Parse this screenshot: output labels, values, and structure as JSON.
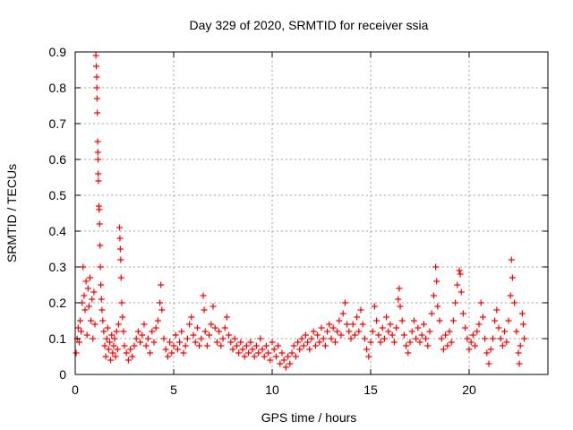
{
  "chart_data": {
    "type": "scatter",
    "title": "Day 329 of 2020, SRMTID for receiver ssia",
    "xlabel": "GPS time / hours",
    "ylabel": "SRMTID / TECUs",
    "xlim": [
      0,
      24
    ],
    "ylim": [
      0,
      0.9
    ],
    "xticks": [
      0,
      5,
      10,
      15,
      20
    ],
    "xtick_labels": [
      "0",
      "5",
      "10",
      "15",
      "20"
    ],
    "yticks": [
      0,
      0.1,
      0.2,
      0.3,
      0.4,
      0.5,
      0.6,
      0.7,
      0.8,
      0.9
    ],
    "ytick_labels": [
      "0",
      "0.1",
      "0.2",
      "0.3",
      "0.4",
      "0.5",
      "0.6",
      "0.7",
      "0.8",
      "0.9"
    ],
    "grid": true,
    "marker": "+",
    "color": "#ff0000",
    "series": [
      {
        "name": "SRMTID",
        "points": [
          [
            0.05,
            0.06
          ],
          [
            0.1,
            0.1
          ],
          [
            0.15,
            0.13
          ],
          [
            0.2,
            0.09
          ],
          [
            0.25,
            0.15
          ],
          [
            0.3,
            0.12
          ],
          [
            0.35,
            0.2
          ],
          [
            0.4,
            0.3
          ],
          [
            0.45,
            0.22
          ],
          [
            0.5,
            0.18
          ],
          [
            0.55,
            0.26
          ],
          [
            0.6,
            0.11
          ],
          [
            0.65,
            0.24
          ],
          [
            0.7,
            0.19
          ],
          [
            0.75,
            0.27
          ],
          [
            0.8,
            0.15
          ],
          [
            0.85,
            0.21
          ],
          [
            0.9,
            0.1
          ],
          [
            0.95,
            0.23
          ],
          [
            1.0,
            0.14
          ],
          [
            1.05,
            0.89
          ],
          [
            1.07,
            0.86
          ],
          [
            1.09,
            0.83
          ],
          [
            1.1,
            0.8
          ],
          [
            1.11,
            0.77
          ],
          [
            1.12,
            0.73
          ],
          [
            1.14,
            0.65
          ],
          [
            1.15,
            0.62
          ],
          [
            1.16,
            0.6
          ],
          [
            1.17,
            0.56
          ],
          [
            1.18,
            0.54
          ],
          [
            1.2,
            0.47
          ],
          [
            1.22,
            0.46
          ],
          [
            1.24,
            0.42
          ],
          [
            1.26,
            0.36
          ],
          [
            1.28,
            0.3
          ],
          [
            1.3,
            0.25
          ],
          [
            1.33,
            0.21
          ],
          [
            1.36,
            0.18
          ],
          [
            1.4,
            0.15
          ],
          [
            1.45,
            0.12
          ],
          [
            1.5,
            0.08
          ],
          [
            1.55,
            0.05
          ],
          [
            1.6,
            0.1
          ],
          [
            1.65,
            0.13
          ],
          [
            1.7,
            0.07
          ],
          [
            1.75,
            0.09
          ],
          [
            1.8,
            0.04
          ],
          [
            1.85,
            0.11
          ],
          [
            1.9,
            0.06
          ],
          [
            1.95,
            0.08
          ],
          [
            2.0,
            0.1
          ],
          [
            2.05,
            0.05
          ],
          [
            2.1,
            0.12
          ],
          [
            2.15,
            0.07
          ],
          [
            2.2,
            0.14
          ],
          [
            2.25,
            0.41
          ],
          [
            2.27,
            0.38
          ],
          [
            2.29,
            0.35
          ],
          [
            2.31,
            0.32
          ],
          [
            2.33,
            0.27
          ],
          [
            2.36,
            0.2
          ],
          [
            2.4,
            0.16
          ],
          [
            2.45,
            0.12
          ],
          [
            2.5,
            0.08
          ],
          [
            2.6,
            0.06
          ],
          [
            2.7,
            0.04
          ],
          [
            2.8,
            0.07
          ],
          [
            2.9,
            0.05
          ],
          [
            3.0,
            0.08
          ],
          [
            3.1,
            0.1
          ],
          [
            3.2,
            0.12
          ],
          [
            3.3,
            0.09
          ],
          [
            3.4,
            0.11
          ],
          [
            3.5,
            0.14
          ],
          [
            3.6,
            0.08
          ],
          [
            3.7,
            0.1
          ],
          [
            3.8,
            0.06
          ],
          [
            3.9,
            0.12
          ],
          [
            4.0,
            0.09
          ],
          [
            4.1,
            0.13
          ],
          [
            4.2,
            0.15
          ],
          [
            4.3,
            0.2
          ],
          [
            4.35,
            0.25
          ],
          [
            4.4,
            0.18
          ],
          [
            4.5,
            0.1
          ],
          [
            4.6,
            0.07
          ],
          [
            4.7,
            0.05
          ],
          [
            4.8,
            0.09
          ],
          [
            4.9,
            0.06
          ],
          [
            5.0,
            0.08
          ],
          [
            5.1,
            0.11
          ],
          [
            5.2,
            0.07
          ],
          [
            5.3,
            0.09
          ],
          [
            5.4,
            0.12
          ],
          [
            5.5,
            0.06
          ],
          [
            5.6,
            0.08
          ],
          [
            5.7,
            0.1
          ],
          [
            5.8,
            0.14
          ],
          [
            5.9,
            0.16
          ],
          [
            6.0,
            0.11
          ],
          [
            6.1,
            0.09
          ],
          [
            6.2,
            0.13
          ],
          [
            6.3,
            0.08
          ],
          [
            6.4,
            0.1
          ],
          [
            6.5,
            0.22
          ],
          [
            6.55,
            0.18
          ],
          [
            6.6,
            0.12
          ],
          [
            6.7,
            0.08
          ],
          [
            6.8,
            0.11
          ],
          [
            6.9,
            0.14
          ],
          [
            7.0,
            0.19
          ],
          [
            7.1,
            0.13
          ],
          [
            7.2,
            0.09
          ],
          [
            7.3,
            0.12
          ],
          [
            7.4,
            0.08
          ],
          [
            7.5,
            0.1
          ],
          [
            7.6,
            0.13
          ],
          [
            7.7,
            0.16
          ],
          [
            7.8,
            0.11
          ],
          [
            7.9,
            0.09
          ],
          [
            8.0,
            0.07
          ],
          [
            8.1,
            0.1
          ],
          [
            8.2,
            0.08
          ],
          [
            8.3,
            0.06
          ],
          [
            8.4,
            0.09
          ],
          [
            8.5,
            0.07
          ],
          [
            8.6,
            0.05
          ],
          [
            8.7,
            0.08
          ],
          [
            8.8,
            0.06
          ],
          [
            8.9,
            0.09
          ],
          [
            9.0,
            0.07
          ],
          [
            9.1,
            0.05
          ],
          [
            9.2,
            0.08
          ],
          [
            9.3,
            0.06
          ],
          [
            9.4,
            0.1
          ],
          [
            9.5,
            0.07
          ],
          [
            9.6,
            0.05
          ],
          [
            9.7,
            0.08
          ],
          [
            9.8,
            0.06
          ],
          [
            9.9,
            0.04
          ],
          [
            10.0,
            0.09
          ],
          [
            10.1,
            0.07
          ],
          [
            10.2,
            0.05
          ],
          [
            10.3,
            0.08
          ],
          [
            10.4,
            0.03
          ],
          [
            10.5,
            0.06
          ],
          [
            10.6,
            0.04
          ],
          [
            10.7,
            0.02
          ],
          [
            10.8,
            0.05
          ],
          [
            10.9,
            0.03
          ],
          [
            11.0,
            0.06
          ],
          [
            11.1,
            0.08
          ],
          [
            11.2,
            0.05
          ],
          [
            11.3,
            0.09
          ],
          [
            11.4,
            0.07
          ],
          [
            11.5,
            0.1
          ],
          [
            11.6,
            0.08
          ],
          [
            11.7,
            0.11
          ],
          [
            11.8,
            0.09
          ],
          [
            11.9,
            0.07
          ],
          [
            12.0,
            0.1
          ],
          [
            12.1,
            0.12
          ],
          [
            12.2,
            0.08
          ],
          [
            12.3,
            0.11
          ],
          [
            12.4,
            0.09
          ],
          [
            12.5,
            0.13
          ],
          [
            12.6,
            0.1
          ],
          [
            12.7,
            0.08
          ],
          [
            12.8,
            0.12
          ],
          [
            12.9,
            0.14
          ],
          [
            13.0,
            0.1
          ],
          [
            13.1,
            0.13
          ],
          [
            13.2,
            0.09
          ],
          [
            13.3,
            0.12
          ],
          [
            13.4,
            0.15
          ],
          [
            13.5,
            0.11
          ],
          [
            13.6,
            0.17
          ],
          [
            13.7,
            0.2
          ],
          [
            13.8,
            0.14
          ],
          [
            13.9,
            0.12
          ],
          [
            14.0,
            0.1
          ],
          [
            14.1,
            0.14
          ],
          [
            14.2,
            0.11
          ],
          [
            14.3,
            0.16
          ],
          [
            14.4,
            0.12
          ],
          [
            14.5,
            0.18
          ],
          [
            14.6,
            0.14
          ],
          [
            14.7,
            0.1
          ],
          [
            14.8,
            0.07
          ],
          [
            14.9,
            0.05
          ],
          [
            15.0,
            0.09
          ],
          [
            15.1,
            0.12
          ],
          [
            15.2,
            0.19
          ],
          [
            15.3,
            0.15
          ],
          [
            15.4,
            0.11
          ],
          [
            15.5,
            0.09
          ],
          [
            15.6,
            0.13
          ],
          [
            15.7,
            0.1
          ],
          [
            15.8,
            0.16
          ],
          [
            15.9,
            0.12
          ],
          [
            16.0,
            0.14
          ],
          [
            16.1,
            0.11
          ],
          [
            16.2,
            0.09
          ],
          [
            16.3,
            0.13
          ],
          [
            16.4,
            0.21
          ],
          [
            16.45,
            0.24
          ],
          [
            16.5,
            0.19
          ],
          [
            16.6,
            0.15
          ],
          [
            16.7,
            0.11
          ],
          [
            16.8,
            0.08
          ],
          [
            16.9,
            0.06
          ],
          [
            17.0,
            0.09
          ],
          [
            17.1,
            0.12
          ],
          [
            17.2,
            0.15
          ],
          [
            17.3,
            0.1
          ],
          [
            17.4,
            0.13
          ],
          [
            17.5,
            0.09
          ],
          [
            17.6,
            0.11
          ],
          [
            17.7,
            0.14
          ],
          [
            17.8,
            0.1
          ],
          [
            17.9,
            0.08
          ],
          [
            18.0,
            0.12
          ],
          [
            18.1,
            0.17
          ],
          [
            18.2,
            0.22
          ],
          [
            18.3,
            0.3
          ],
          [
            18.35,
            0.26
          ],
          [
            18.4,
            0.19
          ],
          [
            18.5,
            0.15
          ],
          [
            18.6,
            0.1
          ],
          [
            18.7,
            0.07
          ],
          [
            18.8,
            0.11
          ],
          [
            18.9,
            0.08
          ],
          [
            19.0,
            0.12
          ],
          [
            19.1,
            0.09
          ],
          [
            19.2,
            0.15
          ],
          [
            19.3,
            0.2
          ],
          [
            19.4,
            0.25
          ],
          [
            19.5,
            0.29
          ],
          [
            19.55,
            0.28
          ],
          [
            19.6,
            0.23
          ],
          [
            19.7,
            0.17
          ],
          [
            19.8,
            0.13
          ],
          [
            19.9,
            0.1
          ],
          [
            20.0,
            0.07
          ],
          [
            20.1,
            0.09
          ],
          [
            20.2,
            0.11
          ],
          [
            20.3,
            0.08
          ],
          [
            20.4,
            0.12
          ],
          [
            20.5,
            0.14
          ],
          [
            20.6,
            0.2
          ],
          [
            20.7,
            0.16
          ],
          [
            20.8,
            0.1
          ],
          [
            20.9,
            0.06
          ],
          [
            21.0,
            0.03
          ],
          [
            21.1,
            0.07
          ],
          [
            21.2,
            0.1
          ],
          [
            21.3,
            0.15
          ],
          [
            21.4,
            0.18
          ],
          [
            21.5,
            0.13
          ],
          [
            21.6,
            0.1
          ],
          [
            21.7,
            0.08
          ],
          [
            21.8,
            0.12
          ],
          [
            21.9,
            0.09
          ],
          [
            22.0,
            0.15
          ],
          [
            22.1,
            0.22
          ],
          [
            22.15,
            0.32
          ],
          [
            22.2,
            0.27
          ],
          [
            22.3,
            0.2
          ],
          [
            22.4,
            0.12
          ],
          [
            22.5,
            0.06
          ],
          [
            22.55,
            0.03
          ],
          [
            22.6,
            0.08
          ],
          [
            22.7,
            0.17
          ],
          [
            22.75,
            0.14
          ],
          [
            22.8,
            0.1
          ]
        ]
      }
    ]
  }
}
